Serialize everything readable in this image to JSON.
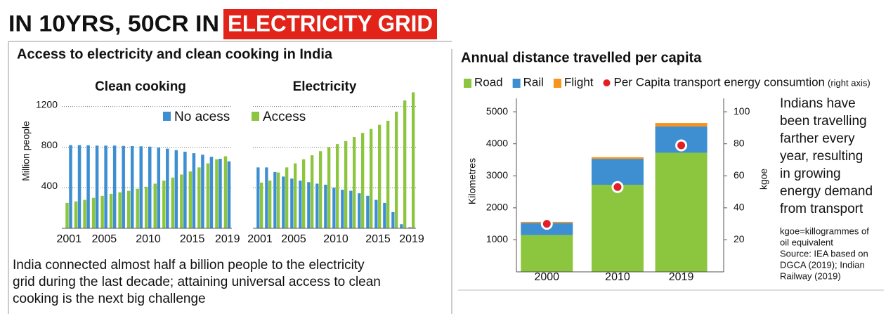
{
  "headline": {
    "text": "IN 10YRS, 50CR IN",
    "highlight": "ELECTRICITY GRID"
  },
  "panel_title": "Access to electricity and clean cooking in India",
  "caption": [
    "India connected almost half a billion people to the electricity",
    "grid during the last decade; attaining universal access to clean",
    "cooking is the next big challenge"
  ],
  "side_text": [
    "Indians have",
    "been travelling",
    "farther every",
    "year, resulting",
    "in growing",
    "energy demand",
    "from transport"
  ],
  "note": [
    "kgoe=killogrammes of",
    "oil equivalent",
    "Source: IEA based on",
    "DGCA (2019); Indian",
    "Railway (2019)"
  ],
  "chart_data": [
    {
      "type": "bar",
      "title": "Clean cooking",
      "ylabel": "Million people",
      "categories": [
        "2001",
        null,
        null,
        null,
        "2005",
        null,
        null,
        null,
        null,
        "2010",
        null,
        null,
        null,
        null,
        "2015",
        null,
        null,
        null,
        "2019"
      ],
      "series": [
        {
          "color": "#8cc63f",
          "values": [
            250,
            265,
            280,
            300,
            320,
            340,
            355,
            370,
            390,
            410,
            440,
            470,
            500,
            530,
            560,
            600,
            640,
            680,
            710
          ]
        },
        {
          "name": "No acess",
          "color": "#3d8fd1",
          "values": [
            820,
            820,
            818,
            815,
            815,
            815,
            812,
            810,
            808,
            805,
            795,
            785,
            770,
            755,
            740,
            725,
            705,
            685,
            660
          ]
        }
      ],
      "ylim": [
        0,
        1350
      ],
      "yticks": [
        400,
        800,
        1200
      ],
      "ytick_labels": true,
      "grid": true
    },
    {
      "type": "bar",
      "title": "Electricity",
      "categories": [
        "2001",
        null,
        null,
        null,
        "2005",
        null,
        null,
        null,
        null,
        "2010",
        null,
        null,
        null,
        null,
        "2015",
        null,
        null,
        null,
        "2019"
      ],
      "series": [
        {
          "color": "#3d8fd1",
          "values": [
            600,
            600,
            555,
            510,
            490,
            470,
            455,
            440,
            430,
            400,
            380,
            370,
            345,
            320,
            280,
            250,
            160,
            40,
            10
          ]
        },
        {
          "name": "Access",
          "color": "#8cc63f",
          "values": [
            450,
            470,
            550,
            600,
            640,
            680,
            720,
            760,
            800,
            830,
            860,
            900,
            940,
            980,
            1020,
            1060,
            1150,
            1260,
            1340
          ]
        }
      ],
      "ylim": [
        0,
        1350
      ],
      "yticks": [
        400,
        800,
        1200
      ],
      "ytick_labels": false,
      "grid": true
    },
    {
      "type": "stacked_bar",
      "title": "Annual distance travelled per capita",
      "ylabel": "Kilometres",
      "y2label": "kgoe",
      "legend_suffix": "(right axis)",
      "x": [
        2000,
        2010,
        2019
      ],
      "xlim": [
        1995.7,
        2025
      ],
      "series": [
        {
          "name": "Road",
          "color": "#8cc63f",
          "values": [
            1150,
            2720,
            3720
          ]
        },
        {
          "name": "Rail",
          "color": "#3d8fd1",
          "values": [
            380,
            810,
            820
          ]
        },
        {
          "name": "Flight",
          "color": "#f7941d",
          "values": [
            30,
            50,
            110
          ]
        },
        {
          "name": "Per Capita transport energy consumtion",
          "color": "#e31e24",
          "axis": "y2",
          "kind": "scatter",
          "values": [
            30,
            53,
            79
          ]
        }
      ],
      "ylim": [
        0,
        5200
      ],
      "yticks": [
        1000,
        2000,
        3000,
        4000,
        5000
      ],
      "y2lim": [
        0,
        104
      ],
      "y2ticks": [
        20,
        40,
        60,
        80,
        100
      ],
      "grid": false
    }
  ]
}
